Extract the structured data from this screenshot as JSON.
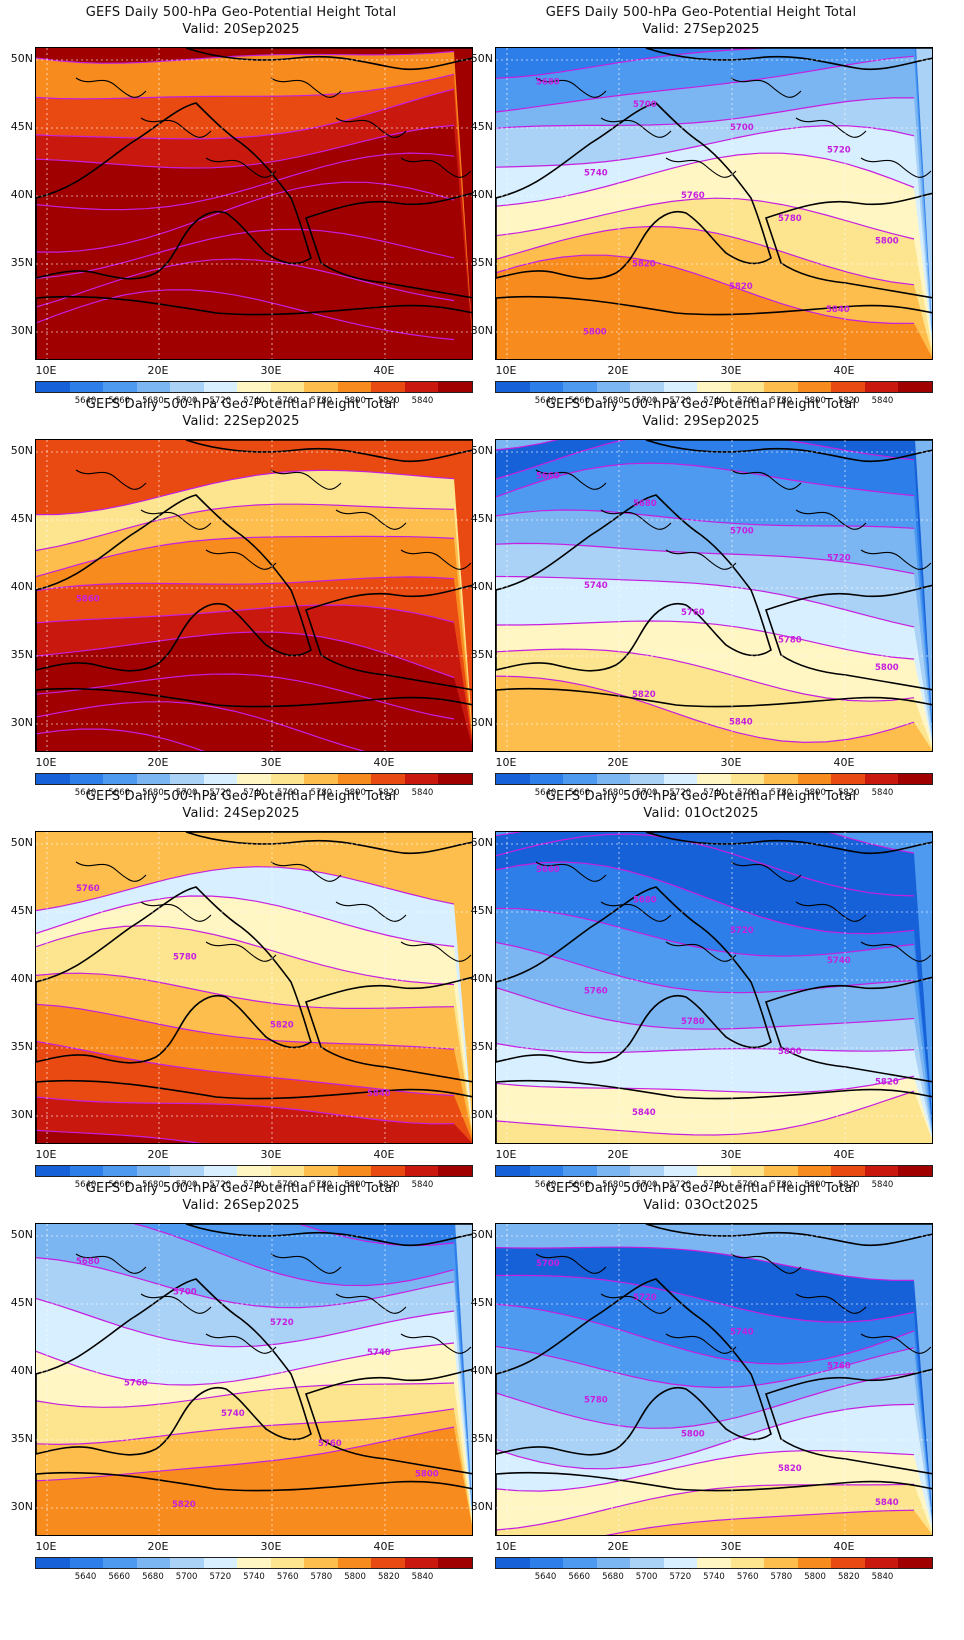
{
  "panels": [
    {
      "title": "GEFS Daily 500-hPa Geo-Potential Height Total",
      "valid": "Valid: 20Sep2025",
      "base_band": 12,
      "shift": 0.0,
      "contours": []
    },
    {
      "title": "GEFS Daily 500-hPa Geo-Potential Height Total",
      "valid": "Valid: 27Sep2025",
      "base_band": 4,
      "shift": -0.1,
      "contours": [
        "5680",
        "5700",
        "5700",
        "5720",
        "5740",
        "5760",
        "5780",
        "5800",
        "5820",
        "5820",
        "5840",
        "5800"
      ]
    },
    {
      "title": "GEFS Daily 500-hPa Geo-Potential Height Total",
      "valid": "Valid: 22Sep2025",
      "base_band": 10,
      "shift": 0.15,
      "contours": [
        "5860"
      ]
    },
    {
      "title": "GEFS Daily 500-hPa Geo-Potential Height Total",
      "valid": "Valid: 29Sep2025",
      "base_band": 3,
      "shift": -0.05,
      "contours": [
        "5660",
        "5680",
        "5700",
        "5720",
        "5740",
        "5760",
        "5780",
        "5800",
        "5820",
        "5840"
      ]
    },
    {
      "title": "GEFS Daily 500-hPa Geo-Potential Height Total",
      "valid": "Valid: 24Sep2025",
      "base_band": 8,
      "shift": 0.2,
      "contours": [
        "5760",
        "5780",
        "5820",
        "5840"
      ]
    },
    {
      "title": "GEFS Daily 500-hPa Geo-Potential Height Total",
      "valid": "Valid: 01Oct2025",
      "base_band": 2,
      "shift": 0.0,
      "contours": [
        "5660",
        "5680",
        "5720",
        "5740",
        "5760",
        "5780",
        "5800",
        "5820",
        "5840"
      ]
    },
    {
      "title": "GEFS Daily 500-hPa Geo-Potential Height Total",
      "valid": "Valid: 26Sep2025",
      "base_band": 4,
      "shift": -0.15,
      "contours": [
        "5680",
        "5700",
        "5720",
        "5740",
        "5760",
        "5740",
        "5760",
        "5800",
        "5820"
      ]
    },
    {
      "title": "GEFS Daily 500-hPa Geo-Potential Height Total",
      "valid": "Valid: 03Oct2025",
      "base_band": 3,
      "shift": 0.1,
      "contours": [
        "5700",
        "5720",
        "5740",
        "5760",
        "5780",
        "5800",
        "5820",
        "5840"
      ]
    }
  ],
  "lat_labels": [
    "50N",
    "45N",
    "40N",
    "35N",
    "30N"
  ],
  "lon_labels": [
    "10E",
    "20E",
    "30E",
    "40E"
  ],
  "colorbar": {
    "labels": [
      "5640",
      "5660",
      "5680",
      "5700",
      "5720",
      "5740",
      "5760",
      "5780",
      "5800",
      "5820",
      "5840"
    ],
    "colors": [
      "#1660d8",
      "#2d7ee8",
      "#4d9af0",
      "#7bb6f3",
      "#a9d2f6",
      "#d7efff",
      "#fff6c4",
      "#fde58f",
      "#fdbe4e",
      "#f88b1e",
      "#e94a12",
      "#c9190e",
      "#a00000"
    ]
  },
  "contour_color": "#c61fe0"
}
